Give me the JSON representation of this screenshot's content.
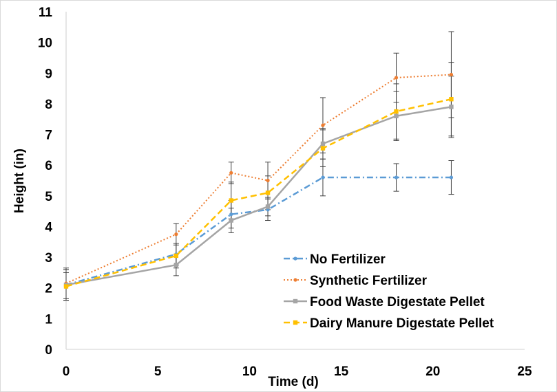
{
  "chart_data": {
    "type": "line",
    "title": "",
    "xlabel": "Time (d)",
    "ylabel": "Height (in)",
    "xlim": [
      0,
      25
    ],
    "ylim": [
      0,
      11
    ],
    "x_ticks": [
      0,
      5,
      10,
      15,
      20,
      25
    ],
    "y_ticks": [
      0,
      1,
      2,
      3,
      4,
      5,
      6,
      7,
      8,
      9,
      10,
      11
    ],
    "x_tick_labels": [
      "0",
      "5",
      "10",
      "15",
      "20",
      "25"
    ],
    "y_tick_labels": [
      "0",
      "1",
      "2",
      "3",
      "4",
      "5",
      "6",
      "7",
      "8",
      "9",
      "10",
      "11"
    ],
    "grid": false,
    "legend_position": "bottom-right",
    "x": [
      0,
      6,
      9,
      11,
      14,
      18,
      21
    ],
    "series": [
      {
        "name": "No Fertilizer",
        "color": "#5b9bd5",
        "dash": "dash-dot",
        "marker": "circle",
        "values": [
          2.1,
          3.1,
          4.4,
          4.55,
          5.6,
          5.6,
          5.6
        ],
        "errors": [
          0.5,
          0.35,
          0.45,
          0.35,
          0.6,
          0.45,
          0.55
        ]
      },
      {
        "name": "Synthetic Fertilizer",
        "color": "#ed7d31",
        "dash": "dotted",
        "marker": "circle",
        "values": [
          2.15,
          3.75,
          5.75,
          5.5,
          7.3,
          8.85,
          8.95
        ],
        "errors": [
          0.5,
          0.35,
          0.35,
          0.6,
          0.9,
          0.8,
          1.4
        ]
      },
      {
        "name": "Food Waste Digestate Pellet",
        "color": "#a5a5a5",
        "dash": "solid",
        "marker": "square",
        "values": [
          2.1,
          2.75,
          4.2,
          4.65,
          6.7,
          7.6,
          7.9
        ],
        "errors": [
          0.5,
          0.35,
          0.4,
          0.3,
          0.5,
          0.8,
          1.0
        ]
      },
      {
        "name": "Dairy Manure Digestate Pellet",
        "color": "#ffc000",
        "dash": "dashed",
        "marker": "square",
        "values": [
          2.05,
          3.05,
          4.85,
          5.1,
          6.55,
          7.75,
          8.15
        ],
        "errors": [
          0.45,
          0.4,
          0.6,
          0.55,
          0.6,
          0.9,
          1.2
        ]
      }
    ]
  }
}
